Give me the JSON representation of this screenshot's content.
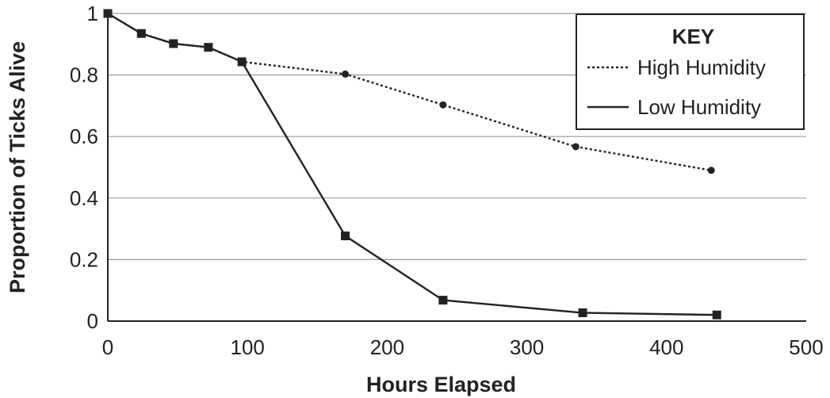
{
  "chart_data": {
    "type": "line",
    "xlabel": "Hours Elapsed",
    "ylabel": "Proportion of Ticks Alive",
    "xlim": [
      0,
      500
    ],
    "ylim": [
      0,
      1
    ],
    "x_ticks": [
      "0",
      "100",
      "200",
      "300",
      "400",
      "500"
    ],
    "y_ticks": [
      "0",
      "0.2",
      "0.4",
      "0.6",
      "0.8",
      "1"
    ],
    "grid": "horizontal",
    "legend": {
      "title": "KEY",
      "position": "top-right"
    },
    "series": [
      {
        "name": "High Humidity",
        "line_style": "dotted",
        "marker": "circle",
        "color": "#222222",
        "points": [
          [
            0,
            1.0
          ],
          [
            24,
            0.935
          ],
          [
            47,
            0.902
          ],
          [
            72,
            0.89
          ],
          [
            96,
            0.843
          ],
          [
            170,
            0.803
          ],
          [
            240,
            0.703
          ],
          [
            335,
            0.567
          ],
          [
            432,
            0.49
          ]
        ]
      },
      {
        "name": "Low Humidity",
        "line_style": "solid",
        "marker": "square",
        "color": "#222222",
        "points": [
          [
            0,
            1.0
          ],
          [
            24,
            0.935
          ],
          [
            47,
            0.902
          ],
          [
            72,
            0.89
          ],
          [
            96,
            0.843
          ],
          [
            170,
            0.277
          ],
          [
            240,
            0.068
          ],
          [
            340,
            0.027
          ],
          [
            436,
            0.02
          ]
        ]
      }
    ]
  }
}
